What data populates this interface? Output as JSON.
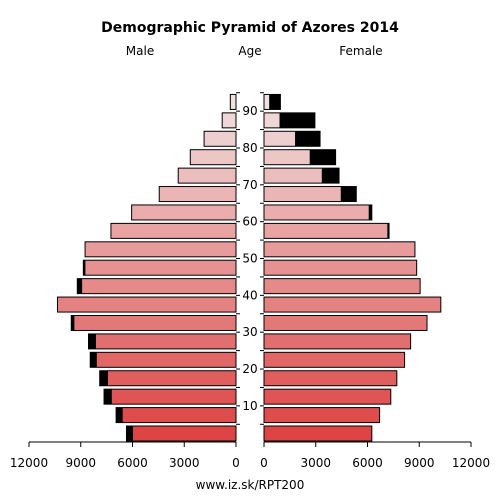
{
  "chart_data": {
    "type": "bar",
    "orientation": "horizontal-pyramid",
    "title": "Demographic Pyramid of Azores 2014",
    "left_label": "Male",
    "center_label": "Age",
    "right_label": "Female",
    "age_group_starts": [
      0,
      5,
      10,
      15,
      20,
      25,
      30,
      35,
      40,
      45,
      50,
      55,
      60,
      65,
      70,
      75,
      80,
      85,
      90
    ],
    "age_tick_labels": [
      "10",
      "20",
      "30",
      "40",
      "50",
      "60",
      "70",
      "80",
      "90"
    ],
    "age_tick_values": [
      10,
      20,
      30,
      40,
      50,
      60,
      70,
      80,
      90
    ],
    "x_tick_labels_left": [
      "12000",
      "9000",
      "6000",
      "3000",
      "0"
    ],
    "x_tick_labels_right": [
      "0",
      "3000",
      "6000",
      "9000",
      "12000"
    ],
    "x_tick_values": [
      12000,
      9000,
      6000,
      3000,
      0
    ],
    "xlim": [
      0,
      12000
    ],
    "series": [
      {
        "name": "Male",
        "values": [
          6350,
          6950,
          7650,
          7900,
          8450,
          8550,
          9550,
          10350,
          9200,
          8850,
          8750,
          7250,
          6050,
          4450,
          3350,
          2650,
          1850,
          800,
          330
        ],
        "dark_portion": [
          380,
          380,
          450,
          480,
          380,
          430,
          180,
          0,
          280,
          120,
          0,
          0,
          0,
          0,
          0,
          0,
          0,
          0,
          0
        ]
      },
      {
        "name": "Female",
        "values": [
          6250,
          6700,
          7350,
          7700,
          8150,
          8500,
          9450,
          10250,
          9050,
          8850,
          8750,
          7250,
          6250,
          5350,
          4350,
          4150,
          3250,
          2950,
          950
        ],
        "dark_portion": [
          0,
          0,
          0,
          0,
          0,
          0,
          0,
          0,
          0,
          0,
          0,
          100,
          180,
          900,
          1000,
          1500,
          1450,
          2050,
          650
        ]
      }
    ],
    "colors": {
      "young": "#dd4444",
      "old": "#f0e0e0",
      "dark_overlay": "#000000"
    },
    "grid": false,
    "footer": "www.iz.sk/RPT200"
  }
}
